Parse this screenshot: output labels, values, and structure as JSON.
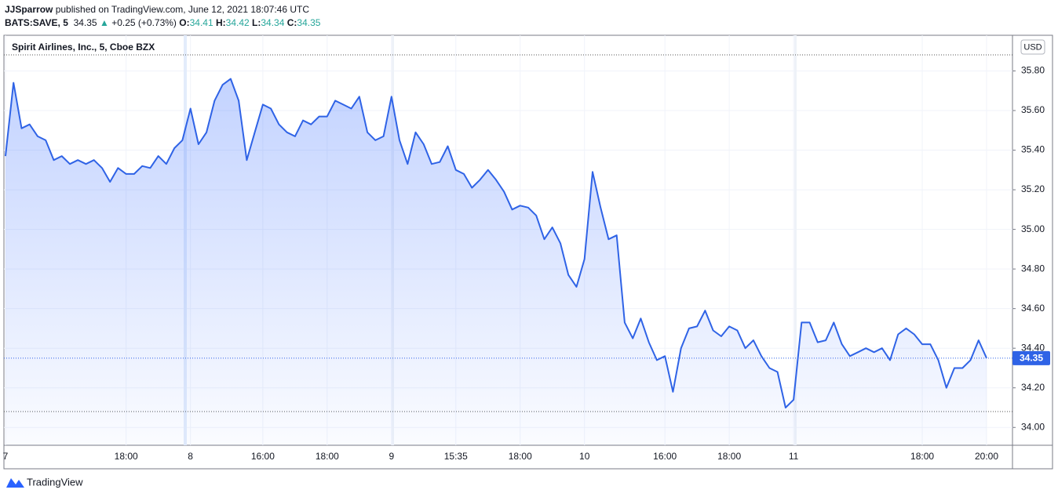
{
  "header": {
    "publisher": "JJSparrow",
    "published": "published on TradingView.com, June 12, 2021 18:07:46 UTC",
    "symbol": "BATS:SAVE, 5",
    "price": "34.35",
    "arrow": "▲",
    "change": "+0.25 (+0.73%)",
    "o_label": "O:",
    "o": "34.41",
    "h_label": "H:",
    "h": "34.42",
    "l_label": "L:",
    "l": "34.34",
    "c_label": "C:",
    "c": "34.35"
  },
  "chart_data": {
    "type": "line",
    "title": "Spirit Airlines, Inc., 5, Cboe BZX",
    "currency": "USD",
    "color": "#2f63e6",
    "categories": [
      "7",
      null,
      null,
      null,
      null,
      null,
      null,
      null,
      null,
      null,
      null,
      null,
      null,
      null,
      null,
      "18:00",
      null,
      null,
      null,
      null,
      null,
      null,
      null,
      "8",
      null,
      null,
      null,
      null,
      null,
      null,
      null,
      null,
      "16:00",
      null,
      null,
      null,
      null,
      null,
      null,
      null,
      "18:00",
      null,
      null,
      null,
      null,
      null,
      null,
      null,
      "9",
      null,
      null,
      null,
      null,
      null,
      null,
      null,
      "15:35",
      null,
      null,
      null,
      null,
      null,
      null,
      null,
      "18:00",
      null,
      null,
      null,
      null,
      null,
      null,
      null,
      "10",
      null,
      null,
      null,
      null,
      null,
      null,
      null,
      null,
      null,
      "16:00",
      null,
      null,
      null,
      null,
      null,
      null,
      null,
      "18:00",
      null,
      null,
      null,
      null,
      null,
      null,
      null,
      "11",
      null,
      null,
      null,
      null,
      null,
      null,
      null,
      null,
      null,
      null,
      null,
      null,
      null,
      null,
      null,
      "18:00",
      null,
      null,
      null,
      null,
      null,
      null,
      null,
      "20:00"
    ],
    "values": [
      35.37,
      35.74,
      35.51,
      35.53,
      35.47,
      35.45,
      35.35,
      35.37,
      35.33,
      35.35,
      35.33,
      35.35,
      35.31,
      35.24,
      35.31,
      35.28,
      35.28,
      35.32,
      35.31,
      35.37,
      35.33,
      35.41,
      35.45,
      35.61,
      35.43,
      35.49,
      35.65,
      35.73,
      35.76,
      35.65,
      35.35,
      35.49,
      35.63,
      35.61,
      35.53,
      35.49,
      35.47,
      35.55,
      35.53,
      35.57,
      35.57,
      35.65,
      35.63,
      35.61,
      35.67,
      35.49,
      35.45,
      35.47,
      35.67,
      35.45,
      35.33,
      35.49,
      35.43,
      35.33,
      35.34,
      35.42,
      35.3,
      35.28,
      35.21,
      35.25,
      35.3,
      35.25,
      35.19,
      35.1,
      35.12,
      35.11,
      35.07,
      34.95,
      35.01,
      34.93,
      34.77,
      34.71,
      34.85,
      35.29,
      35.11,
      34.95,
      34.97,
      34.53,
      34.45,
      34.55,
      34.43,
      34.34,
      34.36,
      34.18,
      34.4,
      34.5,
      34.51,
      34.59,
      34.49,
      34.46,
      34.51,
      34.49,
      34.4,
      34.44,
      34.36,
      34.3,
      34.28,
      34.1,
      34.14,
      34.53,
      34.53,
      34.43,
      34.44,
      34.53,
      34.42,
      34.36,
      34.38,
      34.4,
      34.38,
      34.4,
      34.34,
      34.47,
      34.5,
      34.47,
      34.42,
      34.42,
      34.34,
      34.2,
      34.3,
      34.3,
      34.34,
      34.44,
      34.35
    ],
    "last_price": 34.35,
    "ylim": [
      33.91,
      35.98
    ],
    "yticks": [
      {
        "value": 34.0,
        "label": "34.00"
      },
      {
        "value": 34.2,
        "label": "34.20"
      },
      {
        "value": 34.4,
        "label": "34.40"
      },
      {
        "value": 34.6,
        "label": "34.60"
      },
      {
        "value": 34.8,
        "label": "34.80"
      },
      {
        "value": 35.0,
        "label": "35.00"
      },
      {
        "value": 35.2,
        "label": "35.20"
      },
      {
        "value": 35.4,
        "label": "35.40"
      },
      {
        "value": 35.6,
        "label": "35.60"
      },
      {
        "value": 35.8,
        "label": "35.80"
      }
    ],
    "grid": true
  },
  "footer": {
    "brand": "TradingView"
  }
}
